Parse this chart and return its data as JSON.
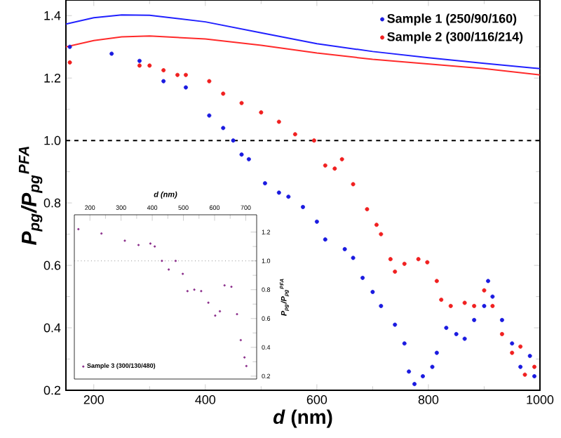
{
  "chart_data": [
    {
      "type": "scatter",
      "xlabel": "*d* (nm)",
      "ylabel": "P$_{pg}$/P$_{pg}$$^{PFA}$",
      "xlim": [
        150,
        1000
      ],
      "ylim": [
        0.2,
        1.45
      ],
      "xticks": [
        200,
        400,
        600,
        800,
        1000
      ],
      "yticks": [
        0.2,
        0.4,
        0.6,
        0.8,
        {
          "value": 1.0,
          "label": "1.0"
        },
        1.2,
        1.4
      ],
      "legend": "top right",
      "ref_lines": [
        {
          "axis": "y",
          "value": 1.0,
          "line_style": "dashed",
          "color": "#000000"
        }
      ],
      "series": [
        {
          "type": "line",
          "marker": "none",
          "color": "#2020ff",
          "x": [
            150,
            200,
            250,
            300,
            400,
            500,
            600,
            700,
            800,
            900,
            1000
          ],
          "values": [
            1.373,
            1.393,
            1.402,
            1.401,
            1.38,
            1.345,
            1.31,
            1.285,
            1.265,
            1.247,
            1.23
          ]
        },
        {
          "type": "line",
          "marker": "none",
          "color": "#ff2a2a",
          "x": [
            150,
            200,
            250,
            300,
            400,
            500,
            600,
            700,
            800,
            900,
            1000
          ],
          "values": [
            1.3,
            1.32,
            1.332,
            1.335,
            1.325,
            1.305,
            1.28,
            1.26,
            1.245,
            1.23,
            1.21
          ]
        },
        {
          "name": "Sample 1 (250/90/160)",
          "marker": "circle",
          "color": "#1a1ae0",
          "x": [
            157,
            232,
            282,
            325,
            365,
            407,
            432,
            450,
            465,
            478,
            507,
            532,
            549,
            575,
            600,
            615,
            650,
            665,
            682,
            700,
            715,
            740,
            757,
            765,
            775,
            790,
            807,
            815,
            832,
            850,
            865,
            882,
            900,
            907,
            915,
            932,
            950,
            965,
            982,
            990
          ],
          "values": [
            1.3,
            1.278,
            1.255,
            1.19,
            1.17,
            1.08,
            1.04,
            1.0,
            0.955,
            0.94,
            0.863,
            0.833,
            0.82,
            0.787,
            0.74,
            0.683,
            0.652,
            0.624,
            0.56,
            0.515,
            0.47,
            0.41,
            0.35,
            0.26,
            0.22,
            0.245,
            0.275,
            0.32,
            0.4,
            0.38,
            0.365,
            0.425,
            0.47,
            0.55,
            0.5,
            0.425,
            0.35,
            0.275,
            0.31,
            0.245
          ]
        },
        {
          "name": "Sample 2 (300/116/214)",
          "marker": "circle",
          "color": "#f02020",
          "x": [
            157,
            282,
            300,
            325,
            350,
            365,
            407,
            432,
            465,
            500,
            532,
            561,
            595,
            615,
            632,
            645,
            665,
            690,
            707,
            715,
            732,
            740,
            757,
            782,
            798,
            815,
            823,
            840,
            865,
            882,
            900,
            915,
            932,
            950,
            965,
            973,
            990
          ],
          "values": [
            1.25,
            1.24,
            1.24,
            1.225,
            1.21,
            1.21,
            1.19,
            1.15,
            1.12,
            1.09,
            1.06,
            1.02,
            1.0,
            0.92,
            0.91,
            0.94,
            0.86,
            0.78,
            0.73,
            0.7,
            0.62,
            0.58,
            0.605,
            0.62,
            0.61,
            0.55,
            0.49,
            0.47,
            0.48,
            0.47,
            0.52,
            0.47,
            0.38,
            0.32,
            0.34,
            0.25,
            0.275
          ]
        }
      ]
    },
    {
      "type": "scatter",
      "xlabel": "*d* (nm)",
      "ylabel": "P$_{pg}$/P$_{pg}$$^{PFA}$",
      "xlim": [
        150,
        735
      ],
      "ylim": [
        0.18,
        1.32
      ],
      "xticks": [
        200,
        300,
        400,
        500,
        600,
        700
      ],
      "yticks": [
        0.2,
        0.4,
        0.6,
        0.8,
        {
          "value": 1.0,
          "label": "1.0"
        },
        1.2
      ],
      "legend": "bottom left",
      "ref_lines": [
        {
          "axis": "y",
          "value": 1.0,
          "line_style": "dotted",
          "color": "#555555"
        }
      ],
      "series": [
        {
          "name": "Sample 3 (300/130/480)",
          "marker": "circle",
          "color": "#8b2f8b",
          "x": [
            163,
            237,
            312,
            356,
            394,
            408,
            431,
            453,
            475,
            498,
            513,
            535,
            557,
            580,
            602,
            617,
            632,
            654,
            672,
            684,
            696,
            702
          ],
          "values": [
            1.22,
            1.19,
            1.14,
            1.11,
            1.12,
            1.1,
            1.0,
            0.94,
            1.0,
            0.91,
            0.79,
            0.8,
            0.79,
            0.71,
            0.62,
            0.65,
            0.83,
            0.82,
            0.63,
            0.45,
            0.33,
            0.27
          ]
        }
      ]
    }
  ]
}
